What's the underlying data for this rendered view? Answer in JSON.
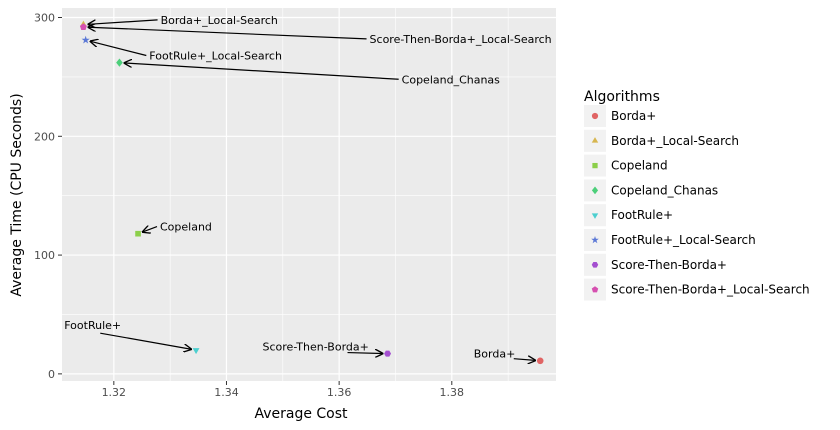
{
  "chart_data": {
    "type": "scatter",
    "xlabel": "Average Cost",
    "ylabel": "Average Time (CPU Seconds)",
    "xlim": [
      1.3108,
      1.3985
    ],
    "ylim": [
      -6,
      308
    ],
    "x_ticks": [
      1.32,
      1.34,
      1.36,
      1.38
    ],
    "x_tick_labels": [
      "1.32",
      "1.34",
      "1.36",
      "1.38"
    ],
    "y_ticks": [
      0,
      100,
      200,
      300
    ],
    "y_tick_labels": [
      "0",
      "100",
      "200",
      "300"
    ],
    "grid": true,
    "legend_position": "right",
    "legend_title": "Algorithms",
    "series": [
      {
        "name": "Borda+",
        "color": "#e06464",
        "marker": "circle",
        "x": 1.3957,
        "y": 11
      },
      {
        "name": "Borda+_Local-Search",
        "color": "#d7b64f",
        "marker": "triangle-up",
        "x": 1.3146,
        "y": 294
      },
      {
        "name": "Copeland",
        "color": "#8ccf4a",
        "marker": "square",
        "x": 1.3243,
        "y": 118
      },
      {
        "name": "Copeland_Chanas",
        "color": "#4ccf7a",
        "marker": "diamond",
        "x": 1.321,
        "y": 262
      },
      {
        "name": "FootRule+",
        "color": "#4ccfcf",
        "marker": "triangle-down",
        "x": 1.3346,
        "y": 20
      },
      {
        "name": "FootRule+_Local-Search",
        "color": "#5b78d6",
        "marker": "star",
        "x": 1.315,
        "y": 281
      },
      {
        "name": "Score-Then-Borda+",
        "color": "#a44fd0",
        "marker": "hexagon",
        "x": 1.3686,
        "y": 17
      },
      {
        "name": "Score-Then-Borda+_Local-Search",
        "color": "#d650b0",
        "marker": "pentagon",
        "x": 1.3146,
        "y": 292
      }
    ],
    "annotations": [
      {
        "text": "Borda+_Local-Search",
        "series": "Borda+_Local-Search",
        "tx": 1.3283,
        "ty": 298,
        "anchor": "start"
      },
      {
        "text": "Score-Then-Borda+_Local-Search",
        "series": "Score-Then-Borda+_Local-Search",
        "tx": 1.3654,
        "ty": 282,
        "anchor": "start"
      },
      {
        "text": "FootRule+_Local-Search",
        "series": "FootRule+_Local-Search",
        "tx": 1.3263,
        "ty": 268,
        "anchor": "start"
      },
      {
        "text": "Copeland_Chanas",
        "series": "Copeland_Chanas",
        "tx": 1.3711,
        "ty": 248,
        "anchor": "start"
      },
      {
        "text": "Copeland",
        "series": "Copeland",
        "tx": 1.3282,
        "ty": 124,
        "anchor": "start"
      },
      {
        "text": "FootRule+",
        "series": "FootRule+",
        "tx": 1.3112,
        "ty": 41,
        "anchor": "start"
      },
      {
        "text": "Score-Then-Borda+",
        "series": "Score-Then-Borda+",
        "tx": 1.3464,
        "ty": 23,
        "anchor": "start"
      },
      {
        "text": "Borda+",
        "series": "Borda+",
        "tx": 1.3839,
        "ty": 17,
        "anchor": "start"
      }
    ]
  }
}
